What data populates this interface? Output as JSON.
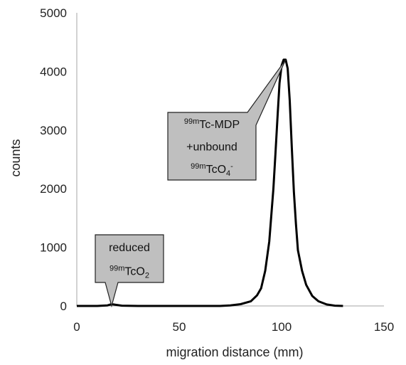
{
  "chart_data": {
    "type": "line",
    "title": "",
    "xlabel": "migration distance (mm)",
    "ylabel": "counts",
    "xlim": [
      0,
      150
    ],
    "ylim": [
      0,
      5000
    ],
    "x_ticks": [
      0,
      50,
      100,
      150
    ],
    "y_ticks": [
      0,
      1000,
      2000,
      3000,
      4000,
      5000
    ],
    "grid": false,
    "legend": "none",
    "line_color": "#000000",
    "series": [
      {
        "x": [
          0,
          10,
          15,
          17,
          19,
          22,
          30,
          40,
          50,
          60,
          70,
          75,
          80,
          85,
          88,
          90,
          92,
          94,
          96,
          97,
          98,
          99,
          100,
          101,
          102,
          103,
          104,
          105,
          106,
          107,
          108,
          110,
          112,
          115,
          118,
          122,
          126,
          130
        ],
        "y": [
          0,
          0,
          10,
          30,
          20,
          5,
          0,
          0,
          0,
          0,
          0,
          10,
          30,
          80,
          180,
          300,
          600,
          1100,
          2000,
          2600,
          3200,
          3800,
          4100,
          4200,
          4200,
          4050,
          3500,
          2700,
          1950,
          1400,
          950,
          600,
          360,
          170,
          80,
          25,
          5,
          0
        ]
      }
    ],
    "annotations": [
      {
        "lines": [
          {
            "sup": "99m",
            "text": "Tc-MDP"
          },
          {
            "sup": "",
            "text": "+unbound"
          },
          {
            "sup": "99m",
            "text": "TcO",
            "sub": "4",
            "sup2": "-"
          }
        ],
        "target": [
          102,
          4200
        ]
      },
      {
        "lines": [
          {
            "sup": "",
            "text": "reduced"
          },
          {
            "sup": "99m",
            "text": "TcO",
            "sub": "2"
          }
        ],
        "target": [
          17,
          0
        ]
      }
    ]
  }
}
